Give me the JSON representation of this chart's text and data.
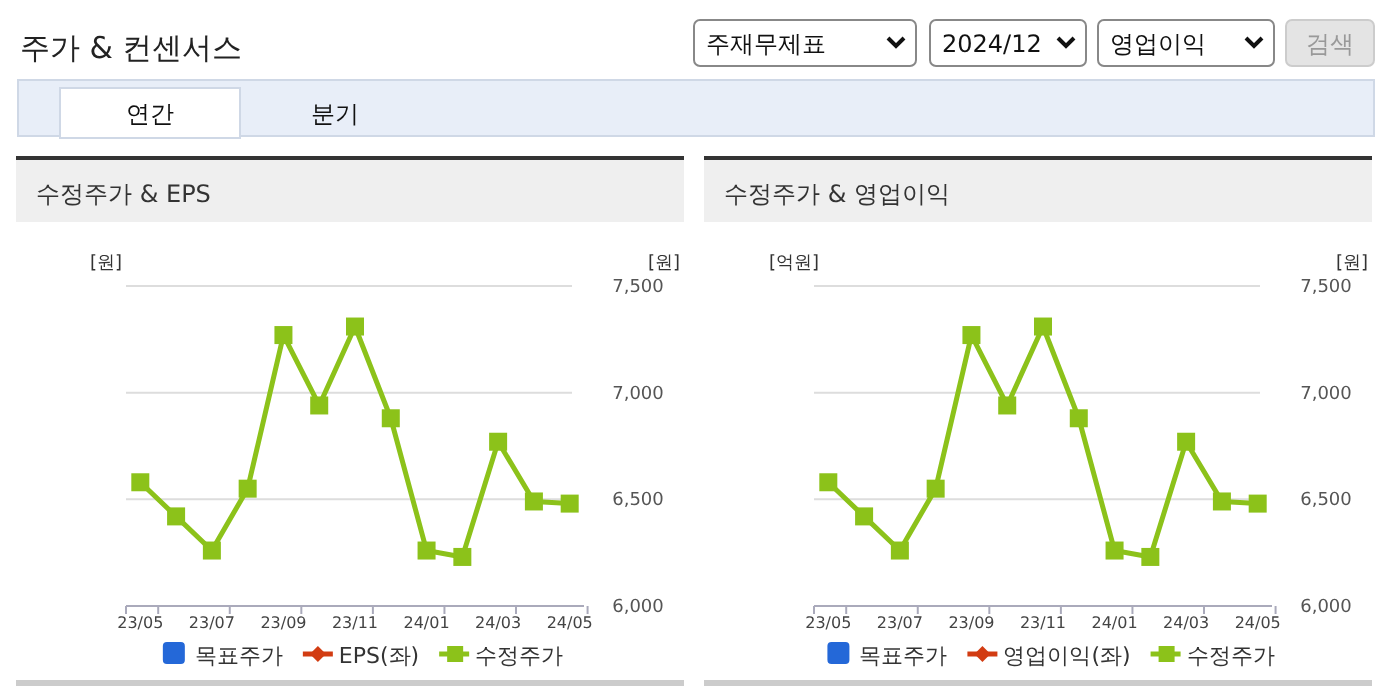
{
  "chart_data": [
    {
      "type": "other",
      "title": "주가 & 컨센서스",
      "annotations": [
        "주재무제표",
        "2024/12",
        "영업이익",
        "검색",
        "연간",
        "분기"
      ]
    },
    {
      "type": "line",
      "title": "수정주가 & EPS",
      "ylabel": "[원]",
      "y2label": "[원]",
      "categories": [
        "23/05",
        null,
        "23/07",
        null,
        "23/09",
        null,
        "23/11",
        null,
        "24/01",
        null,
        "24/03",
        null,
        "24/05"
      ],
      "series": [
        {
          "name": "목표주가",
          "type": "scatter",
          "color": "#2468d8",
          "axis": "y2",
          "values": [
            null,
            null,
            null,
            null,
            null,
            null,
            null,
            null,
            null,
            null,
            null,
            null,
            null
          ]
        },
        {
          "name": "EPS(좌)",
          "type": "line",
          "color": "#d23c12",
          "axis": "y",
          "values": [
            null,
            null,
            null,
            null,
            null,
            null,
            null,
            null,
            null,
            null,
            null,
            null,
            null
          ]
        },
        {
          "name": "수정주가",
          "type": "line",
          "color": "#8cc21a",
          "axis": "y2",
          "values": [
            6580,
            6420,
            6260,
            6550,
            7270,
            6940,
            7310,
            6880,
            6260,
            6230,
            6770,
            6490,
            6480
          ]
        }
      ],
      "y2lim": [
        6000,
        7500
      ],
      "y2ticks": [
        {
          "value": 6000,
          "label": "6,000"
        },
        {
          "value": 6500,
          "label": "6,500"
        },
        {
          "value": 7000,
          "label": "7,000"
        },
        {
          "value": 7500,
          "label": "7,500"
        }
      ],
      "grid": "y",
      "legend": "bottom",
      "marker": "square"
    },
    {
      "type": "line",
      "title": "수정주가 & 영업이익",
      "ylabel": "[억원]",
      "y2label": "[원]",
      "categories": [
        "23/05",
        null,
        "23/07",
        null,
        "23/09",
        null,
        "23/11",
        null,
        "24/01",
        null,
        "24/03",
        null,
        "24/05"
      ],
      "series": [
        {
          "name": "목표주가",
          "type": "scatter",
          "color": "#2468d8",
          "axis": "y2",
          "values": [
            null,
            null,
            null,
            null,
            null,
            null,
            null,
            null,
            null,
            null,
            null,
            null,
            null
          ]
        },
        {
          "name": "영업이익(좌)",
          "type": "line",
          "color": "#d23c12",
          "axis": "y",
          "values": [
            null,
            null,
            null,
            null,
            null,
            null,
            null,
            null,
            null,
            null,
            null,
            null,
            null
          ]
        },
        {
          "name": "수정주가",
          "type": "line",
          "color": "#8cc21a",
          "axis": "y2",
          "values": [
            6580,
            6420,
            6260,
            6550,
            7270,
            6940,
            7310,
            6880,
            6260,
            6230,
            6770,
            6490,
            6480
          ]
        }
      ],
      "y2lim": [
        6000,
        7500
      ],
      "y2ticks": [
        {
          "value": 6000,
          "label": "6,000"
        },
        {
          "value": 6500,
          "label": "6,500"
        },
        {
          "value": 7000,
          "label": "7,000"
        },
        {
          "value": 7500,
          "label": "7,500"
        }
      ],
      "grid": "y",
      "legend": "bottom",
      "marker": "square"
    }
  ]
}
